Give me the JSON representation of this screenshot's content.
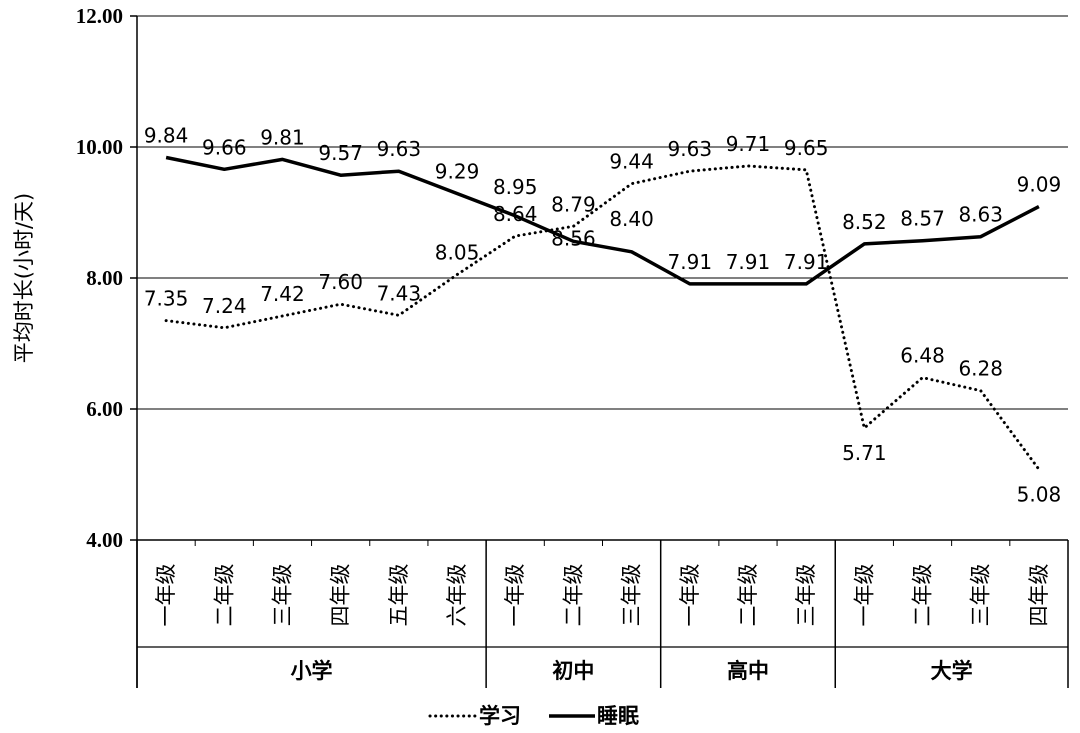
{
  "chart_data": {
    "type": "line",
    "ylabel": "平均时长(小时/天)",
    "ylim": [
      4,
      12
    ],
    "yticks": [
      4,
      6,
      8,
      10,
      12
    ],
    "ytick_labels": [
      "4.00",
      "6.00",
      "8.00",
      "10.00",
      "12.00"
    ],
    "grid": "horizontal",
    "legend": "bottom",
    "categories": [
      "一年级",
      "二年级",
      "三年级",
      "四年级",
      "五年级",
      "六年级",
      "一年级",
      "二年级",
      "三年级",
      "一年级",
      "二年级",
      "三年级",
      "一年级",
      "二年级",
      "三年级",
      "四年级"
    ],
    "groups": [
      {
        "label": "小学",
        "count": 6
      },
      {
        "label": "初中",
        "count": 3
      },
      {
        "label": "高中",
        "count": 3
      },
      {
        "label": "大学",
        "count": 4
      }
    ],
    "series": [
      {
        "name": "学习",
        "style": "dotted",
        "color": "#000000",
        "values": [
          7.35,
          7.24,
          7.42,
          7.6,
          7.43,
          8.05,
          8.64,
          8.79,
          9.44,
          9.63,
          9.71,
          9.65,
          5.71,
          6.48,
          6.28,
          5.08
        ],
        "labels": [
          "7.35",
          "7.24",
          "7.42",
          "7.60",
          "7.43",
          "8.05",
          "8.64",
          "8.79",
          "9.44",
          "9.63",
          "9.71",
          "9.65",
          "5.71",
          "6.48",
          "6.28",
          "5.08"
        ]
      },
      {
        "name": "睡眠",
        "style": "solid",
        "color": "#000000",
        "values": [
          9.84,
          9.66,
          9.81,
          9.57,
          9.63,
          9.29,
          8.95,
          8.56,
          8.4,
          7.91,
          7.91,
          7.91,
          8.52,
          8.57,
          8.63,
          9.09
        ],
        "labels": [
          "9.84",
          "9.66",
          "9.81",
          "9.57",
          "9.63",
          "9.29",
          "8.95",
          "8.56",
          "8.40",
          "7.91",
          "7.91",
          "7.91",
          "8.52",
          "8.57",
          "8.63",
          "9.09"
        ]
      }
    ]
  }
}
